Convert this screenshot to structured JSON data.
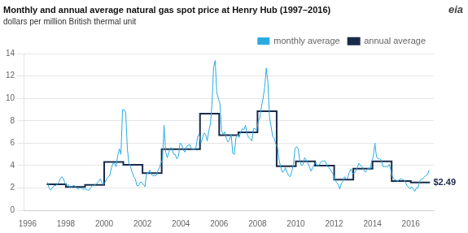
{
  "chart_data": {
    "type": "line",
    "title": "Monthly and annual average natural gas spot price at Henry Hub (1997–2016)",
    "subtitle": "dollars per million British thermal unit",
    "xlim": [
      1995.8,
      2017.2
    ],
    "xticks": [
      1996,
      1998,
      2000,
      2002,
      2004,
      2006,
      2008,
      2010,
      2012,
      2014,
      2016
    ],
    "ylim": [
      0,
      14
    ],
    "yticks": [
      0,
      2,
      4,
      6,
      8,
      10,
      12,
      14
    ],
    "grid": "y",
    "legend": "upper right",
    "series": [
      {
        "name": "monthly average",
        "color": "#29ABE2",
        "x": [
          1997.041667,
          1997.125,
          1997.208333,
          1997.291667,
          1997.375,
          1997.458333,
          1997.541667,
          1997.625,
          1997.708333,
          1997.791667,
          1997.875,
          1997.958333,
          1998.041667,
          1998.125,
          1998.208333,
          1998.291667,
          1998.375,
          1998.458333,
          1998.541667,
          1998.625,
          1998.708333,
          1998.791667,
          1998.875,
          1998.958333,
          1999.041667,
          1999.125,
          1999.208333,
          1999.291667,
          1999.375,
          1999.458333,
          1999.541667,
          1999.625,
          1999.708333,
          1999.791667,
          1999.875,
          1999.958333,
          2000.041667,
          2000.125,
          2000.208333,
          2000.291667,
          2000.375,
          2000.458333,
          2000.541667,
          2000.625,
          2000.708333,
          2000.791667,
          2000.875,
          2000.958333,
          2001.041667,
          2001.125,
          2001.208333,
          2001.291667,
          2001.375,
          2001.458333,
          2001.541667,
          2001.625,
          2001.708333,
          2001.791667,
          2001.875,
          2001.958333,
          2002.041667,
          2002.125,
          2002.208333,
          2002.291667,
          2002.375,
          2002.458333,
          2002.541667,
          2002.625,
          2002.708333,
          2002.791667,
          2002.875,
          2002.958333,
          2003.041667,
          2003.125,
          2003.208333,
          2003.291667,
          2003.375,
          2003.458333,
          2003.541667,
          2003.625,
          2003.708333,
          2003.791667,
          2003.875,
          2003.958333,
          2004.041667,
          2004.125,
          2004.208333,
          2004.291667,
          2004.375,
          2004.458333,
          2004.541667,
          2004.625,
          2004.708333,
          2004.791667,
          2004.875,
          2004.958333,
          2005.041667,
          2005.125,
          2005.208333,
          2005.291667,
          2005.375,
          2005.458333,
          2005.541667,
          2005.625,
          2005.708333,
          2005.791667,
          2005.875,
          2005.958333,
          2006.041667,
          2006.125,
          2006.208333,
          2006.291667,
          2006.375,
          2006.458333,
          2006.541667,
          2006.625,
          2006.708333,
          2006.791667,
          2006.875,
          2006.958333,
          2007.041667,
          2007.125,
          2007.208333,
          2007.291667,
          2007.375,
          2007.458333,
          2007.541667,
          2007.625,
          2007.708333,
          2007.791667,
          2007.875,
          2007.958333,
          2008.041667,
          2008.125,
          2008.208333,
          2008.291667,
          2008.375,
          2008.458333,
          2008.541667,
          2008.625,
          2008.708333,
          2008.791667,
          2008.875,
          2008.958333,
          2009.041667,
          2009.125,
          2009.208333,
          2009.291667,
          2009.375,
          2009.458333,
          2009.541667,
          2009.625,
          2009.708333,
          2009.791667,
          2009.875,
          2009.958333,
          2010.041667,
          2010.125,
          2010.208333,
          2010.291667,
          2010.375,
          2010.458333,
          2010.541667,
          2010.625,
          2010.708333,
          2010.791667,
          2010.875,
          2010.958333,
          2011.041667,
          2011.125,
          2011.208333,
          2011.291667,
          2011.375,
          2011.458333,
          2011.541667,
          2011.625,
          2011.708333,
          2011.791667,
          2011.875,
          2011.958333,
          2012.041667,
          2012.125,
          2012.208333,
          2012.291667,
          2012.375,
          2012.458333,
          2012.541667,
          2012.625,
          2012.708333,
          2012.791667,
          2012.875,
          2012.958333,
          2013.041667,
          2013.125,
          2013.208333,
          2013.291667,
          2013.375,
          2013.458333,
          2013.541667,
          2013.625,
          2013.708333,
          2013.791667,
          2013.875,
          2013.958333,
          2014.041667,
          2014.125,
          2014.208333,
          2014.291667,
          2014.375,
          2014.458333,
          2014.541667,
          2014.625,
          2014.708333,
          2014.791667,
          2014.875,
          2014.958333,
          2015.041667,
          2015.125,
          2015.208333,
          2015.291667,
          2015.375,
          2015.458333,
          2015.541667,
          2015.625,
          2015.708333,
          2015.791667,
          2015.875,
          2015.958333,
          2016.041667,
          2016.125,
          2016.208333,
          2016.291667,
          2016.375,
          2016.458333,
          2016.541667,
          2016.625,
          2016.708333,
          2016.791667,
          2016.875,
          2016.958333
        ],
        "values": [
          2.5,
          2.0,
          1.8,
          2.0,
          2.2,
          2.2,
          2.3,
          2.5,
          2.8,
          3.0,
          2.8,
          2.4,
          2.2,
          2.3,
          2.0,
          2.1,
          2.2,
          2.2,
          2.0,
          1.9,
          2.0,
          2.0,
          1.9,
          1.9,
          1.9,
          1.8,
          1.8,
          2.0,
          2.2,
          2.2,
          2.3,
          2.4,
          2.6,
          2.8,
          2.5,
          2.3,
          2.5,
          2.8,
          3.0,
          3.1,
          3.8,
          4.2,
          4.2,
          3.9,
          4.9,
          5.5,
          5.0,
          9.0,
          9.0,
          8.7,
          5.5,
          4.2,
          3.9,
          3.4,
          3.0,
          2.8,
          2.2,
          2.2,
          2.5,
          2.5,
          2.3,
          2.1,
          3.3,
          3.3,
          3.6,
          3.2,
          3.1,
          3.1,
          3.1,
          3.5,
          3.8,
          4.2,
          4.5,
          7.6,
          5.2,
          4.7,
          5.2,
          5.6,
          5.5,
          5.0,
          5.0,
          4.6,
          4.8,
          6.0,
          5.9,
          5.4,
          5.2,
          5.7,
          5.8,
          5.9,
          5.5,
          5.5,
          5.4,
          5.6,
          6.6,
          6.8,
          6.0,
          6.4,
          6.9,
          6.8,
          6.2,
          7.1,
          7.7,
          9.5,
          12.8,
          13.4,
          10.5,
          10.0,
          9.5,
          7.1,
          6.8,
          7.0,
          6.4,
          6.1,
          6.3,
          6.8,
          5.1,
          5.0,
          6.5,
          6.8,
          6.5,
          7.0,
          7.3,
          7.2,
          7.6,
          6.8,
          6.5,
          6.4,
          6.2,
          7.3,
          7.3,
          7.1,
          8.0,
          8.3,
          9.3,
          10.0,
          11.0,
          12.7,
          11.5,
          8.3,
          7.5,
          6.6,
          6.4,
          5.9,
          5.7,
          4.5,
          3.9,
          3.4,
          3.5,
          3.8,
          3.4,
          3.1,
          3.0,
          3.5,
          4.1,
          5.5,
          5.7,
          5.5,
          4.4,
          4.0,
          4.1,
          4.7,
          4.5,
          4.2,
          3.9,
          3.5,
          3.8,
          4.1,
          4.3,
          3.9,
          4.0,
          4.3,
          4.4,
          4.4,
          4.4,
          4.0,
          3.8,
          3.7,
          3.4,
          3.2,
          2.7,
          2.5,
          2.3,
          1.9,
          2.4,
          2.6,
          3.0,
          2.8,
          2.9,
          3.4,
          3.7,
          3.3,
          3.3,
          3.5,
          3.8,
          4.2,
          4.0,
          3.9,
          3.6,
          3.4,
          3.6,
          3.8,
          3.6,
          4.4,
          4.8,
          6.0,
          4.8,
          4.6,
          4.6,
          4.5,
          3.9,
          3.9,
          3.9,
          3.9,
          4.1,
          3.6,
          3.0,
          2.8,
          2.7,
          2.6,
          2.7,
          2.8,
          2.8,
          2.7,
          2.6,
          2.2,
          2.1,
          1.9,
          2.1,
          1.9,
          1.7,
          2.0,
          2.0,
          2.6,
          2.8,
          2.8,
          3.0,
          3.1,
          3.2,
          3.6
        ]
      },
      {
        "name": "annual average",
        "color": "#1a2a4a",
        "x": [
          1997,
          1998,
          1998,
          1999,
          1999,
          2000,
          2000,
          2001,
          2001,
          2002,
          2002,
          2003,
          2003,
          2004,
          2004,
          2005,
          2005,
          2006,
          2006,
          2007,
          2007,
          2008,
          2008,
          2009,
          2009,
          2010,
          2010,
          2011,
          2011,
          2012,
          2012,
          2013,
          2013,
          2014,
          2014,
          2015,
          2015,
          2016,
          2016,
          2017
        ],
        "values": [
          2.32,
          2.32,
          2.08,
          2.08,
          2.27,
          2.27,
          4.32,
          4.32,
          4.07,
          4.07,
          3.33,
          3.33,
          5.47,
          5.47,
          5.46,
          5.46,
          8.65,
          8.65,
          6.72,
          6.72,
          6.97,
          6.97,
          8.86,
          8.86,
          3.94,
          3.94,
          4.37,
          4.37,
          4.0,
          4.0,
          2.75,
          2.75,
          3.73,
          3.73,
          4.37,
          4.37,
          2.62,
          2.62,
          2.49,
          2.49
        ]
      }
    ],
    "annotations": [
      {
        "text": "$2.49",
        "x": 2017.05,
        "y": 2.49,
        "color": "#1a2a4a"
      },
      {
        "text": "eia"
      }
    ]
  }
}
